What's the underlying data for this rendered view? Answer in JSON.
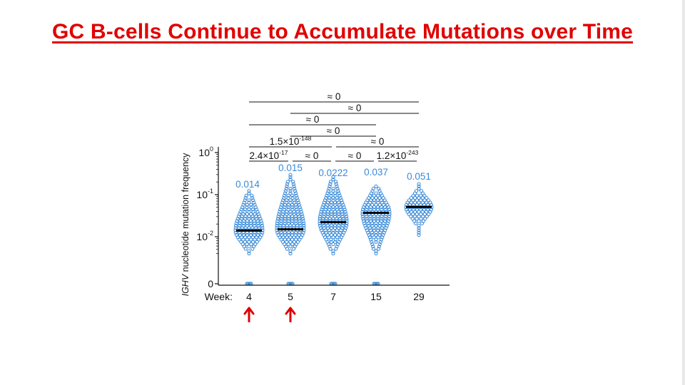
{
  "title": "GC B-cells Continue to Accumulate Mutations over Time",
  "colors": {
    "title": "#e00000",
    "dots": "#3a8ad8",
    "median": "#000000",
    "arrow": "#e00000"
  },
  "chart_data": {
    "type": "scatter",
    "subtype": "beeswarm",
    "ylabel_italic": "IGHV",
    "ylabel_rest": " nucleotide mutation frequency",
    "x_prefix": "Week:",
    "y_scale": "log",
    "y_ticks": [
      {
        "base": "10",
        "exp": "0",
        "value": 1
      },
      {
        "base": "10",
        "exp": "-1",
        "value": 0.1
      },
      {
        "base": "10",
        "exp": "-2",
        "value": 0.01
      },
      {
        "base": "0",
        "exp": "",
        "value": 0
      }
    ],
    "categories": [
      "4",
      "5",
      "7",
      "15",
      "29"
    ],
    "medians": [
      0.014,
      0.015,
      0.0222,
      0.037,
      0.051
    ],
    "median_labels": [
      "0.014",
      "0.015",
      "0.0222",
      "0.037",
      "0.051"
    ],
    "max_values": [
      0.13,
      0.3,
      0.27,
      0.17,
      0.2
    ],
    "min_values": [
      0.004,
      0.004,
      0.004,
      0.004,
      0.011
    ],
    "has_zero_values": [
      true,
      true,
      true,
      true,
      false
    ],
    "comparisons": [
      {
        "from": "4",
        "to": "29",
        "label": "≈ 0"
      },
      {
        "from": "5",
        "to": "29",
        "label": "≈ 0"
      },
      {
        "from": "4",
        "to": "15",
        "label": "≈ 0"
      },
      {
        "from": "5",
        "to": "15",
        "label": "≈ 0"
      },
      {
        "from": "4",
        "to": "7",
        "label_base": "1.5×10",
        "label_exp": "-148"
      },
      {
        "from": "7",
        "to": "29",
        "label": "≈ 0"
      },
      {
        "from": "4",
        "to": "5",
        "label_base": "2.4×10",
        "label_exp": "-17"
      },
      {
        "from": "5",
        "to": "7",
        "label": "≈ 0"
      },
      {
        "from": "7",
        "to": "15",
        "label": "≈ 0"
      },
      {
        "from": "15",
        "to": "29",
        "label_base": "1.2×10",
        "label_exp": "-243"
      }
    ],
    "arrows_at": [
      "4",
      "5"
    ]
  }
}
